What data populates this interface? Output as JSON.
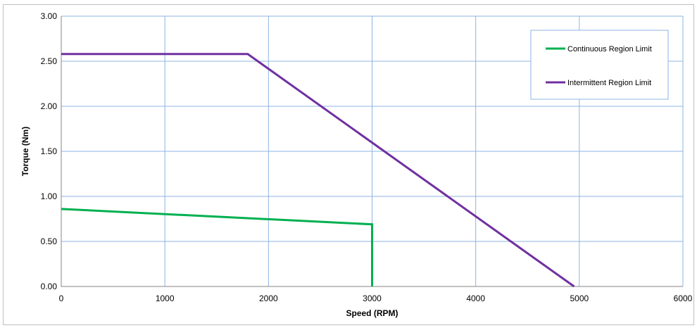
{
  "chart_data": {
    "type": "line",
    "title": "",
    "xlabel": "Speed (RPM)",
    "ylabel": "Torque (Nm)",
    "xlim": [
      0,
      6000
    ],
    "ylim": [
      0,
      3
    ],
    "x_ticks": [
      "0",
      "1000",
      "2000",
      "3000",
      "4000",
      "5000",
      "6000"
    ],
    "y_ticks": [
      "0.00",
      "0.50",
      "1.00",
      "1.50",
      "2.00",
      "2.50",
      "3.00"
    ],
    "grid": true,
    "legend_position": "top-right",
    "series": [
      {
        "name": "Continuous Region Limit",
        "color": "#00b050",
        "points": [
          [
            0,
            0.86
          ],
          [
            3000,
            0.69
          ],
          [
            3000,
            0.0
          ]
        ]
      },
      {
        "name": "Intermittent Region Limit",
        "color": "#7030a0",
        "points": [
          [
            0,
            2.58
          ],
          [
            1800,
            2.58
          ],
          [
            4950,
            0.0
          ]
        ]
      }
    ]
  }
}
